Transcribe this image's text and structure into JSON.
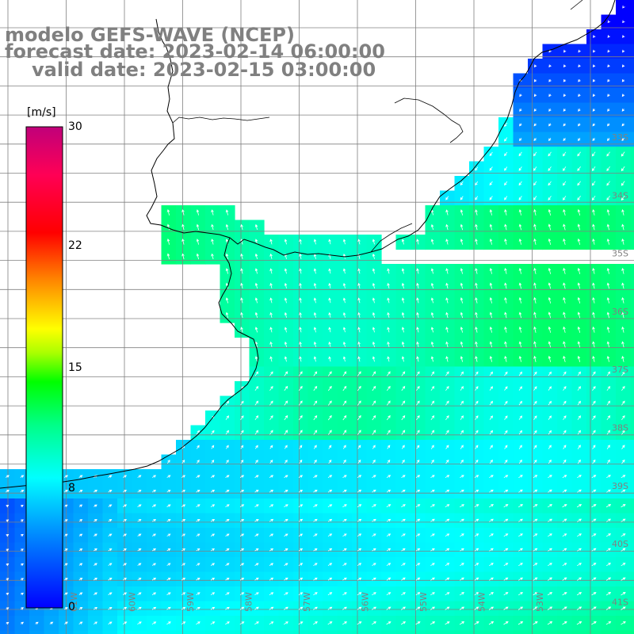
{
  "title": {
    "model": "modelo GEFS-WAVE (NCEP)",
    "forecast": "forecast date: 2023-02-14 06:00:00",
    "valid": "valid date: 2023-02-15 03:00:00"
  },
  "colorbar": {
    "unit": "[m/s]",
    "ticks": [
      "30",
      "22",
      "15",
      "8",
      "0"
    ],
    "range": [
      0,
      30
    ],
    "colors": [
      "#0000ff",
      "#00aaff",
      "#00ffff",
      "#00ff66",
      "#33ff00",
      "#ffff00",
      "#ff8800",
      "#ff0000",
      "#ff0066",
      "#cc0077"
    ]
  },
  "grid": {
    "lat_labels": [
      "33S",
      "34S",
      "35S",
      "36S",
      "37S",
      "38S",
      "39S",
      "40S",
      "41S"
    ],
    "lon_labels": [
      "61W",
      "60W",
      "59W",
      "58W",
      "57W",
      "56W",
      "55W",
      "54W",
      "53W"
    ]
  },
  "colors": {
    "land": "#ffffff",
    "grid_line": "#808080",
    "arrow": "#ffffff",
    "coast": "#000000",
    "label": "#808080"
  }
}
